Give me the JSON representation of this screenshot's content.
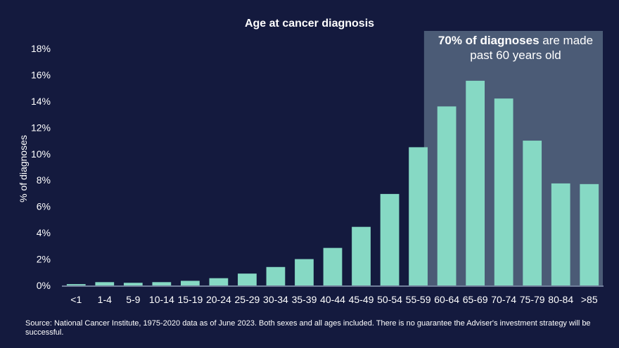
{
  "chart_data": {
    "type": "bar",
    "title": "Age at cancer diagnosis",
    "ylabel": "% of diagnoses",
    "xlabel": "",
    "ylim": [
      0,
      18
    ],
    "yticks": [
      0,
      2,
      4,
      6,
      8,
      10,
      12,
      14,
      16,
      18
    ],
    "ytick_labels": [
      "0%",
      "2%",
      "4%",
      "6%",
      "8%",
      "10%",
      "12%",
      "14%",
      "16%",
      "18%"
    ],
    "categories": [
      "<1",
      "1-4",
      "5-9",
      "10-14",
      "15-19",
      "20-24",
      "25-29",
      "30-34",
      "35-39",
      "40-44",
      "45-49",
      "50-54",
      "55-59",
      "60-64",
      "65-69",
      "70-74",
      "75-79",
      "80-84",
      ">85"
    ],
    "values": [
      0.1,
      0.25,
      0.2,
      0.25,
      0.35,
      0.55,
      0.9,
      1.4,
      2.0,
      2.85,
      4.45,
      6.95,
      10.5,
      13.6,
      15.55,
      14.2,
      11.0,
      7.75,
      7.7
    ],
    "grid": false,
    "highlight": {
      "from_category": "60-64",
      "to_category": ">85",
      "text_strong": "70% of diagnoses",
      "text_rest": " are made",
      "text_line2": "past 60 years old"
    },
    "colors": {
      "background": "#141a3e",
      "bar": "#86d9c4",
      "highlight_panel": "#4b5b76",
      "text": "#ffffff"
    }
  },
  "source_note": "Source: National Cancer Institute, 1975-2020 data as of June 2023. Both sexes and all ages included. There is no guarantee the Adviser's investment strategy will be successful."
}
